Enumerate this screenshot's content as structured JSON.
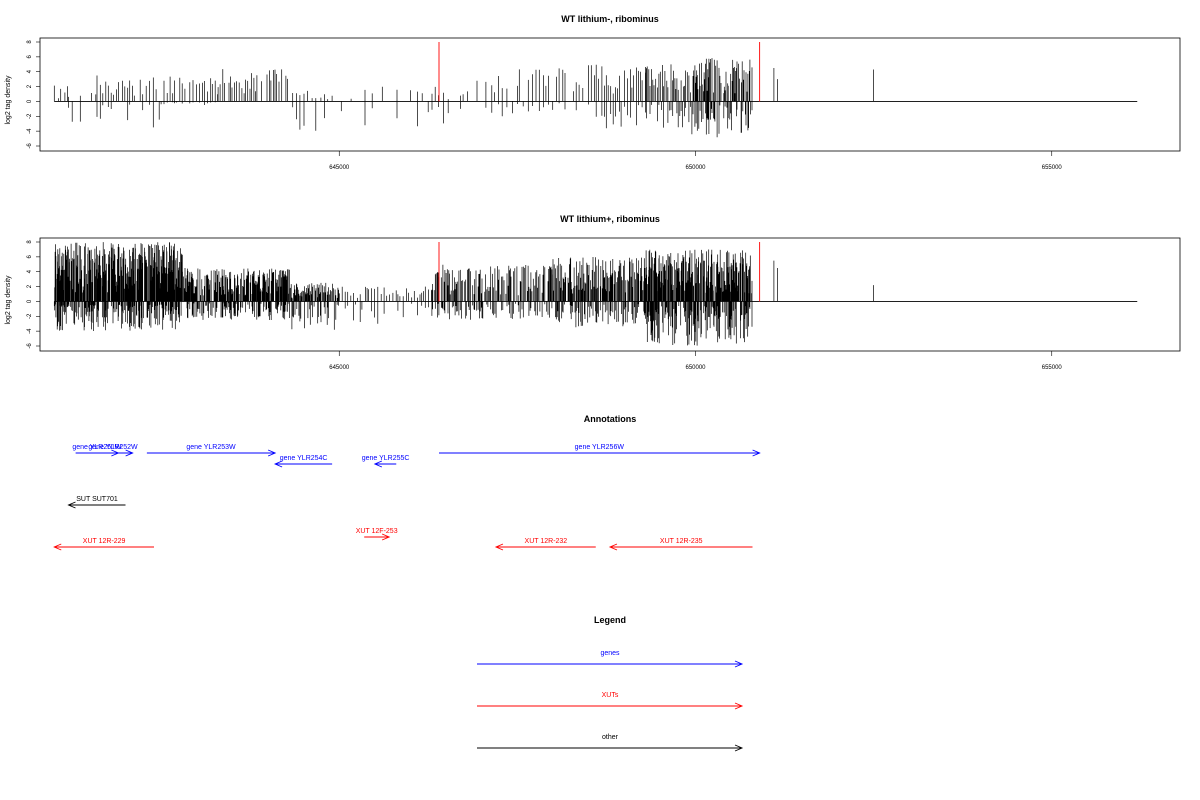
{
  "chart_data": [
    {
      "type": "bar",
      "title": "WT lithium-, ribominus",
      "ylabel": "log2 tag density",
      "xlabel": "",
      "xlim": [
        640800,
        656800
      ],
      "ylim": [
        -6,
        8
      ],
      "x_ticks": [
        645000,
        650000,
        655000
      ],
      "y_ticks": [
        -6,
        -4,
        -2,
        0,
        2,
        4,
        6,
        8
      ],
      "grid": false,
      "baseline": {
        "from": 641000,
        "to": 656200
      },
      "markers": {
        "color": "#ff0000",
        "x": [
          646400,
          650900
        ],
        "y": 8
      },
      "regions": [
        {
          "from": 641000,
          "to": 641200,
          "posMax": 2.4,
          "negMin": 0,
          "step": 45
        },
        {
          "from": 641200,
          "to": 641600,
          "posMax": 1.2,
          "negMin": -3.0,
          "step": 70
        },
        {
          "from": 641600,
          "to": 642500,
          "posMax": 3.5,
          "negMin": -4.0,
          "step": 40
        },
        {
          "from": 642500,
          "to": 643300,
          "posMax": 3.5,
          "negMin": -0.5,
          "step": 35
        },
        {
          "from": 643300,
          "to": 644300,
          "posMax": 4.5,
          "negMin": 0,
          "step": 30
        },
        {
          "from": 644300,
          "to": 644900,
          "posMax": 1.5,
          "negMin": -4.0,
          "step": 55
        },
        {
          "from": 644900,
          "to": 646000,
          "posMax": 2.0,
          "negMin": -3.5,
          "step": 160
        },
        {
          "from": 646000,
          "to": 646600,
          "posMax": 2.0,
          "negMin": -4.0,
          "step": 70
        },
        {
          "from": 646700,
          "to": 647500,
          "posMax": 3.5,
          "negMin": -2.5,
          "step": 60
        },
        {
          "from": 647500,
          "to": 648500,
          "posMax": 4.5,
          "negMin": -1.5,
          "step": 45
        },
        {
          "from": 648500,
          "to": 649300,
          "posMax": 5.0,
          "negMin": -4.0,
          "step": 35
        },
        {
          "from": 649300,
          "to": 650000,
          "posMax": 5.0,
          "negMin": -4.5,
          "step": 18
        },
        {
          "from": 650000,
          "to": 650800,
          "posMax": 6.0,
          "negMin": -5.0,
          "step": 10
        }
      ],
      "spikes": [
        {
          "x": 651100,
          "y": 4.5
        },
        {
          "x": 651150,
          "y": 3.0
        },
        {
          "x": 652500,
          "y": 4.3
        }
      ]
    },
    {
      "type": "bar",
      "title": "WT lithium+, ribominus",
      "ylabel": "log2 tag density",
      "xlabel": "",
      "xlim": [
        640800,
        656800
      ],
      "ylim": [
        -6,
        8
      ],
      "x_ticks": [
        645000,
        650000,
        655000
      ],
      "y_ticks": [
        -6,
        -4,
        -2,
        0,
        2,
        4,
        6,
        8
      ],
      "grid": false,
      "baseline": {
        "from": 641000,
        "to": 656200
      },
      "markers": {
        "color": "#ff0000",
        "x": [
          646400,
          650900
        ],
        "y": 8
      },
      "regions": [
        {
          "from": 641000,
          "to": 642800,
          "posMax": 8.0,
          "negMin": -4.0,
          "step": 6
        },
        {
          "from": 642800,
          "to": 644300,
          "posMax": 4.5,
          "negMin": -2.5,
          "step": 8
        },
        {
          "from": 644300,
          "to": 645000,
          "posMax": 2.5,
          "negMin": -4.0,
          "step": 10
        },
        {
          "from": 645000,
          "to": 646300,
          "posMax": 2.0,
          "negMin": -3.0,
          "step": 35
        },
        {
          "from": 646300,
          "to": 648000,
          "posMax": 5.0,
          "negMin": -2.5,
          "step": 14
        },
        {
          "from": 648000,
          "to": 649300,
          "posMax": 6.0,
          "negMin": -3.5,
          "step": 10
        },
        {
          "from": 649300,
          "to": 650800,
          "posMax": 7.0,
          "negMin": -6.0,
          "step": 6
        }
      ],
      "spikes": [
        {
          "x": 651100,
          "y": 5.5
        },
        {
          "x": 651150,
          "y": 4.5
        },
        {
          "x": 652500,
          "y": 2.2
        }
      ]
    }
  ],
  "annotations": {
    "title": "Annotations",
    "xlim": [
      640800,
      656800
    ],
    "features": [
      {
        "label": "gene YLR251W",
        "type": "gene",
        "from": 641300,
        "to": 641900,
        "row": 1
      },
      {
        "label": "gene YLR252W",
        "type": "gene",
        "from": 641550,
        "to": 642100,
        "row": 1
      },
      {
        "label": "gene YLR253W",
        "type": "gene",
        "from": 642300,
        "to": 644100,
        "row": 1
      },
      {
        "label": "gene YLR254C",
        "type": "gene",
        "from": 644900,
        "to": 644100,
        "row": 2
      },
      {
        "label": "gene YLR255C",
        "type": "gene",
        "from": 645800,
        "to": 645500,
        "row": 2
      },
      {
        "label": "gene YLR256W",
        "type": "gene",
        "from": 646400,
        "to": 650900,
        "row": 1
      },
      {
        "label": "SUT SUT701",
        "type": "other",
        "from": 642000,
        "to": 641200,
        "row": 3
      },
      {
        "label": "XUT 12R-229",
        "type": "xut",
        "from": 642400,
        "to": 641000,
        "row": 5
      },
      {
        "label": "XUT 12F-253",
        "type": "xut",
        "from": 645350,
        "to": 645700,
        "row": 4
      },
      {
        "label": "XUT 12R-232",
        "type": "xut",
        "from": 648600,
        "to": 647200,
        "row": 5
      },
      {
        "label": "XUT 12R-235",
        "type": "xut",
        "from": 650800,
        "to": 648800,
        "row": 5
      }
    ]
  },
  "legend": {
    "title": "Legend",
    "items": [
      {
        "label": "genes",
        "type": "gene"
      },
      {
        "label": "XUTs",
        "type": "xut"
      },
      {
        "label": "other",
        "type": "other"
      }
    ]
  },
  "colors": {
    "gene": "#0000ff",
    "xut": "#ff0000",
    "other": "#000000",
    "axis": "#000000"
  }
}
